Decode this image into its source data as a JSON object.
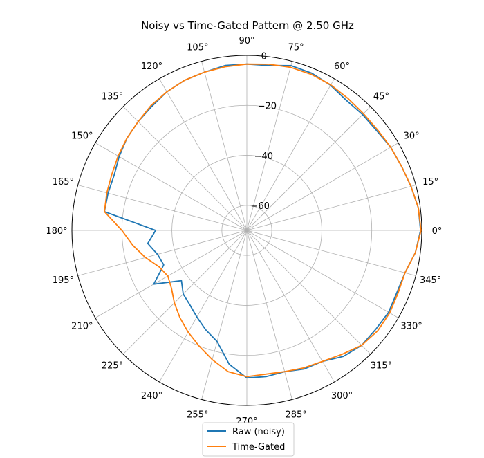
{
  "chart_data": {
    "type": "line",
    "subtype": "polar",
    "title": "Noisy vs Time-Gated Pattern @ 2.50 GHz",
    "theta_unit": "deg",
    "theta_ticks": [
      0,
      15,
      30,
      45,
      60,
      75,
      90,
      105,
      120,
      135,
      150,
      165,
      180,
      195,
      210,
      225,
      240,
      255,
      270,
      285,
      300,
      315,
      330,
      345
    ],
    "theta_tick_labels": [
      "0°",
      "15°",
      "30°",
      "45°",
      "60°",
      "75°",
      "90°",
      "105°",
      "120°",
      "135°",
      "150°",
      "165°",
      "180°",
      "195°",
      "210°",
      "225°",
      "240°",
      "255°",
      "270°",
      "285°",
      "300°",
      "315°",
      "330°",
      "345°"
    ],
    "r_lim": [
      -70,
      0
    ],
    "r_ticks": [
      -60,
      -40,
      -20,
      0
    ],
    "r_tick_labels": [
      "−60",
      "−40",
      "−20",
      "0"
    ],
    "grid": true,
    "legend_placement": "bottom-center",
    "series": [
      {
        "name": "Raw (noisy)",
        "color": "#1f77b4",
        "theta": [
          0,
          7.5,
          15,
          22.5,
          30,
          37.5,
          45,
          52.5,
          60,
          67.5,
          75,
          82.5,
          90,
          97.5,
          105,
          112.5,
          120,
          127.5,
          135,
          142.5,
          150,
          157.5,
          165,
          172.5,
          180,
          187.5,
          195,
          202.5,
          210,
          217.5,
          225,
          232.5,
          240,
          247.5,
          255,
          262.5,
          270,
          277.5,
          285,
          292.5,
          300,
          307.5,
          315,
          322.5,
          330,
          337.5,
          345,
          352.5,
          360
        ],
        "r": [
          -0.5,
          -0.8,
          -2,
          -3,
          -3.5,
          -4.5,
          -4.5,
          -4.5,
          -3,
          -2,
          -1.8,
          -3.5,
          -3.5,
          -3.5,
          -4.5,
          -5,
          -6,
          -7.5,
          -8.5,
          -9.5,
          -11,
          -12.5,
          -12.5,
          -12.5,
          -33.5,
          -30,
          -33,
          -34,
          -27,
          -37,
          -34,
          -32.5,
          -30,
          -27,
          -24,
          -16,
          -11,
          -11,
          -11.5,
          -10,
          -9.5,
          -6.5,
          -5,
          -5,
          -4.5,
          -5,
          -4.5,
          -2,
          -0.5
        ]
      },
      {
        "name": "Time-Gated",
        "color": "#ff7f0e",
        "theta": [
          0,
          7.5,
          15,
          22.5,
          30,
          37.5,
          45,
          52.5,
          60,
          67.5,
          75,
          82.5,
          90,
          97.5,
          105,
          112.5,
          120,
          127.5,
          135,
          142.5,
          150,
          157.5,
          165,
          172.5,
          180,
          187.5,
          195,
          202.5,
          210,
          217.5,
          225,
          232.5,
          240,
          247.5,
          255,
          262.5,
          270,
          277.5,
          285,
          292.5,
          300,
          307.5,
          315,
          322.5,
          330,
          337.5,
          345,
          352.5,
          360
        ],
        "r": [
          -0.3,
          -0.8,
          -2,
          -3,
          -3.5,
          -4,
          -4,
          -3.5,
          -2.8,
          -2.5,
          -2.5,
          -3,
          -3.5,
          -4,
          -4.5,
          -5,
          -6,
          -7,
          -8.5,
          -9.5,
          -10.5,
          -11.5,
          -12,
          -12.5,
          -20,
          -24,
          -28,
          -32,
          -33.5,
          -32,
          -29,
          -26,
          -23,
          -20,
          -16.5,
          -13,
          -11.5,
          -12,
          -11.5,
          -10.5,
          -9.5,
          -7.5,
          -5,
          -4,
          -4,
          -4.5,
          -4.5,
          -2,
          -0.3
        ]
      }
    ]
  }
}
